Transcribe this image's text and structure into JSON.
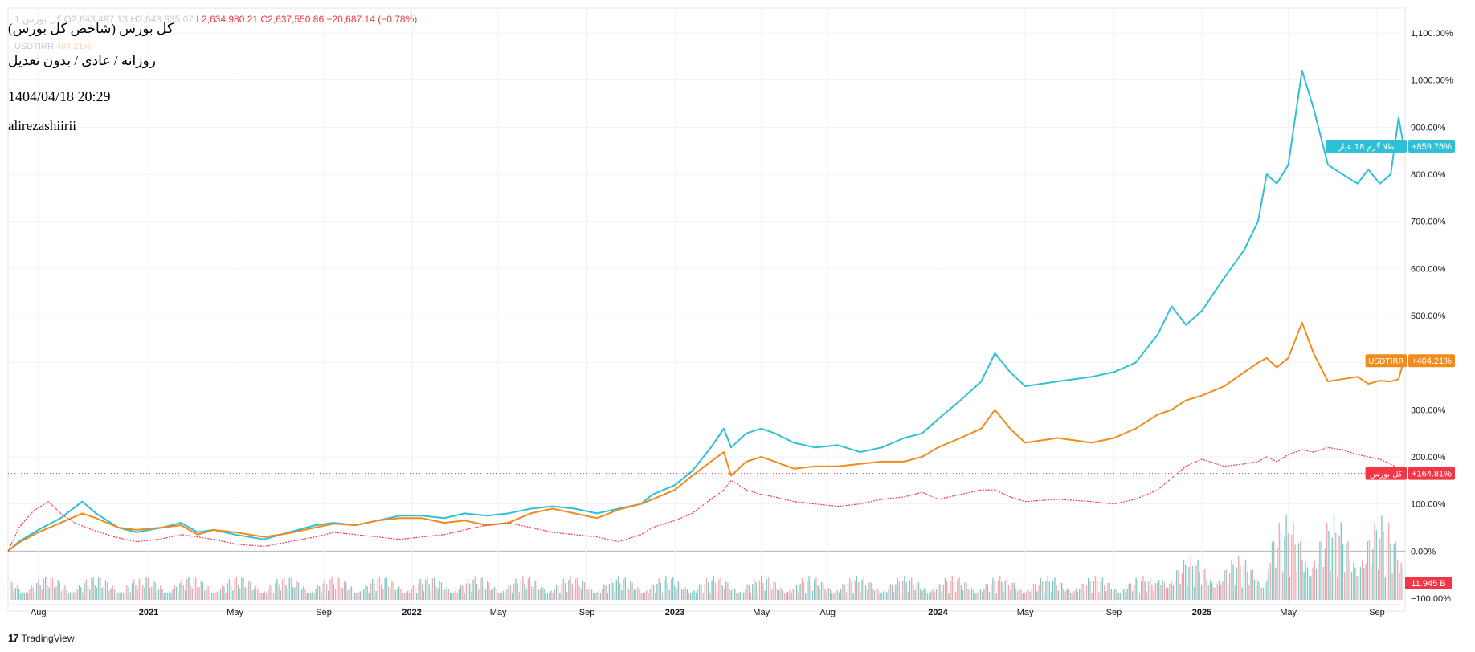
{
  "header": {
    "title": "کل بورس (شاخص کل بورس)",
    "interval": "روزانه / عادی / بدون تعدیل",
    "datetime": "1404/04/18 20:29",
    "author": "alirezashiirii"
  },
  "ohlc": {
    "symbol_hint": "کل بورس 1",
    "open": "O2,643,497.13",
    "high": "H2,643,635.07",
    "low": "L2,634,980.21",
    "close": "C2,637,550.86",
    "change": "−20,687.14 (−0.78%)"
  },
  "usdt_hint": {
    "symbol": "USDTIRR",
    "value": "404.21%"
  },
  "brand": {
    "logo": "17",
    "name": "TradingView"
  },
  "colors": {
    "gold": "#2ec0d4",
    "usdt": "#f08b1c",
    "index_up": "#089981",
    "index_down": "#f23645",
    "axis_text": "#131722",
    "grid": "#f0f3fa"
  },
  "chart_data": {
    "type": "line",
    "title": "کل بورس (شاخص کل بورس)",
    "xlabel": "",
    "ylabel": "",
    "y_unit": "%",
    "ylim": [
      -100,
      1100
    ],
    "x_range": [
      "2020-06-20",
      "2025-10-10"
    ],
    "x_ticks": [
      {
        "date": "2020-08-01",
        "label": "Aug"
      },
      {
        "date": "2021-01-01",
        "label": "2021"
      },
      {
        "date": "2021-05-01",
        "label": "May"
      },
      {
        "date": "2021-09-01",
        "label": "Sep"
      },
      {
        "date": "2022-01-01",
        "label": "2022"
      },
      {
        "date": "2022-05-01",
        "label": "May"
      },
      {
        "date": "2022-09-01",
        "label": "Sep"
      },
      {
        "date": "2023-01-01",
        "label": "2023"
      },
      {
        "date": "2023-05-01",
        "label": "May"
      },
      {
        "date": "2023-08-01",
        "label": "Aug"
      },
      {
        "date": "2024-01-01",
        "label": "2024"
      },
      {
        "date": "2024-05-01",
        "label": "May"
      },
      {
        "date": "2024-09-01",
        "label": "Sep"
      },
      {
        "date": "2025-01-01",
        "label": "2025"
      },
      {
        "date": "2025-05-01",
        "label": "May"
      },
      {
        "date": "2025-09-01",
        "label": "Sep"
      }
    ],
    "y_ticks": [
      {
        "value": 1100,
        "label": "1,100.00%"
      },
      {
        "value": 1000,
        "label": "1,000.00%"
      },
      {
        "value": 900,
        "label": "900.00%"
      },
      {
        "value": 800,
        "label": "800.00%"
      },
      {
        "value": 700,
        "label": "700.00%"
      },
      {
        "value": 600,
        "label": "600.00%"
      },
      {
        "value": 500,
        "label": "500.00%"
      },
      {
        "value": 400,
        "label": "400.00%"
      },
      {
        "value": 300,
        "label": "300.00%"
      },
      {
        "value": 200,
        "label": "200.00%"
      },
      {
        "value": 100,
        "label": "100.00%"
      },
      {
        "value": 0,
        "label": "0.00%"
      },
      {
        "value": -100,
        "label": "−100.00%"
      }
    ],
    "series": [
      {
        "name": "طلا گرم 18 عیار",
        "last_label": "+859.76%",
        "last_value": 859.76,
        "color": "#2ec0d4",
        "points": [
          [
            "2020-06-20",
            0
          ],
          [
            "2020-07-05",
            20
          ],
          [
            "2020-08-01",
            45
          ],
          [
            "2020-09-01",
            70
          ],
          [
            "2020-10-01",
            105
          ],
          [
            "2020-10-20",
            80
          ],
          [
            "2020-11-20",
            50
          ],
          [
            "2020-12-15",
            40
          ],
          [
            "2021-01-20",
            50
          ],
          [
            "2021-02-15",
            60
          ],
          [
            "2021-03-10",
            40
          ],
          [
            "2021-04-01",
            45
          ],
          [
            "2021-05-01",
            35
          ],
          [
            "2021-06-10",
            25
          ],
          [
            "2021-07-15",
            40
          ],
          [
            "2021-08-20",
            55
          ],
          [
            "2021-09-15",
            60
          ],
          [
            "2021-10-15",
            55
          ],
          [
            "2021-11-15",
            65
          ],
          [
            "2021-12-15",
            75
          ],
          [
            "2022-01-15",
            75
          ],
          [
            "2022-02-15",
            70
          ],
          [
            "2022-03-15",
            80
          ],
          [
            "2022-04-15",
            75
          ],
          [
            "2022-05-15",
            80
          ],
          [
            "2022-06-15",
            90
          ],
          [
            "2022-07-15",
            95
          ],
          [
            "2022-08-15",
            90
          ],
          [
            "2022-09-15",
            80
          ],
          [
            "2022-10-15",
            90
          ],
          [
            "2022-11-15",
            100
          ],
          [
            "2022-12-01",
            120
          ],
          [
            "2023-01-01",
            140
          ],
          [
            "2023-01-25",
            170
          ],
          [
            "2023-02-20",
            220
          ],
          [
            "2023-03-10",
            260
          ],
          [
            "2023-03-20",
            220
          ],
          [
            "2023-04-10",
            250
          ],
          [
            "2023-05-01",
            260
          ],
          [
            "2023-05-20",
            250
          ],
          [
            "2023-06-15",
            230
          ],
          [
            "2023-07-15",
            220
          ],
          [
            "2023-08-15",
            225
          ],
          [
            "2023-09-15",
            210
          ],
          [
            "2023-10-15",
            220
          ],
          [
            "2023-11-15",
            240
          ],
          [
            "2023-12-10",
            250
          ],
          [
            "2024-01-01",
            280
          ],
          [
            "2024-02-01",
            320
          ],
          [
            "2024-03-01",
            360
          ],
          [
            "2024-03-20",
            420
          ],
          [
            "2024-04-10",
            380
          ],
          [
            "2024-05-01",
            350
          ],
          [
            "2024-06-15",
            360
          ],
          [
            "2024-08-01",
            370
          ],
          [
            "2024-09-01",
            380
          ],
          [
            "2024-10-01",
            400
          ],
          [
            "2024-11-01",
            460
          ],
          [
            "2024-11-20",
            520
          ],
          [
            "2024-12-10",
            480
          ],
          [
            "2025-01-01",
            510
          ],
          [
            "2025-02-01",
            580
          ],
          [
            "2025-03-01",
            640
          ],
          [
            "2025-03-20",
            700
          ],
          [
            "2025-04-01",
            800
          ],
          [
            "2025-04-15",
            780
          ],
          [
            "2025-05-01",
            820
          ],
          [
            "2025-05-20",
            1020
          ],
          [
            "2025-06-05",
            940
          ],
          [
            "2025-06-25",
            820
          ],
          [
            "2025-07-15",
            800
          ],
          [
            "2025-08-05",
            780
          ],
          [
            "2025-08-20",
            810
          ],
          [
            "2025-09-05",
            780
          ],
          [
            "2025-09-20",
            800
          ],
          [
            "2025-10-01",
            920
          ],
          [
            "2025-10-08",
            859.76
          ]
        ]
      },
      {
        "name": "USDTIRR",
        "last_label": "+404.21%",
        "last_value": 404.21,
        "color": "#f08b1c",
        "points": [
          [
            "2020-06-20",
            0
          ],
          [
            "2020-07-05",
            18
          ],
          [
            "2020-08-01",
            40
          ],
          [
            "2020-09-01",
            60
          ],
          [
            "2020-10-01",
            80
          ],
          [
            "2020-10-20",
            70
          ],
          [
            "2020-11-20",
            50
          ],
          [
            "2020-12-15",
            45
          ],
          [
            "2021-01-20",
            50
          ],
          [
            "2021-02-15",
            55
          ],
          [
            "2021-03-10",
            35
          ],
          [
            "2021-04-01",
            45
          ],
          [
            "2021-05-01",
            40
          ],
          [
            "2021-06-10",
            30
          ],
          [
            "2021-07-15",
            38
          ],
          [
            "2021-08-20",
            50
          ],
          [
            "2021-09-15",
            58
          ],
          [
            "2021-10-15",
            55
          ],
          [
            "2021-11-15",
            65
          ],
          [
            "2021-12-15",
            70
          ],
          [
            "2022-01-15",
            70
          ],
          [
            "2022-02-15",
            60
          ],
          [
            "2022-03-15",
            65
          ],
          [
            "2022-04-15",
            55
          ],
          [
            "2022-05-15",
            60
          ],
          [
            "2022-06-15",
            80
          ],
          [
            "2022-07-15",
            90
          ],
          [
            "2022-08-15",
            80
          ],
          [
            "2022-09-15",
            70
          ],
          [
            "2022-10-15",
            88
          ],
          [
            "2022-11-15",
            100
          ],
          [
            "2022-12-01",
            110
          ],
          [
            "2023-01-01",
            130
          ],
          [
            "2023-01-25",
            160
          ],
          [
            "2023-02-20",
            190
          ],
          [
            "2023-03-10",
            210
          ],
          [
            "2023-03-20",
            160
          ],
          [
            "2023-04-10",
            190
          ],
          [
            "2023-05-01",
            200
          ],
          [
            "2023-05-20",
            190
          ],
          [
            "2023-06-15",
            175
          ],
          [
            "2023-07-15",
            180
          ],
          [
            "2023-08-15",
            180
          ],
          [
            "2023-09-15",
            185
          ],
          [
            "2023-10-15",
            190
          ],
          [
            "2023-11-15",
            190
          ],
          [
            "2023-12-10",
            200
          ],
          [
            "2024-01-01",
            220
          ],
          [
            "2024-02-01",
            240
          ],
          [
            "2024-03-01",
            260
          ],
          [
            "2024-03-20",
            300
          ],
          [
            "2024-04-10",
            260
          ],
          [
            "2024-05-01",
            230
          ],
          [
            "2024-06-15",
            240
          ],
          [
            "2024-08-01",
            230
          ],
          [
            "2024-09-01",
            240
          ],
          [
            "2024-10-01",
            260
          ],
          [
            "2024-11-01",
            290
          ],
          [
            "2024-11-20",
            300
          ],
          [
            "2024-12-10",
            320
          ],
          [
            "2025-01-01",
            330
          ],
          [
            "2025-02-01",
            350
          ],
          [
            "2025-03-01",
            380
          ],
          [
            "2025-03-20",
            400
          ],
          [
            "2025-04-01",
            410
          ],
          [
            "2025-04-15",
            390
          ],
          [
            "2025-05-01",
            410
          ],
          [
            "2025-05-20",
            485
          ],
          [
            "2025-06-05",
            420
          ],
          [
            "2025-06-25",
            360
          ],
          [
            "2025-07-15",
            365
          ],
          [
            "2025-08-05",
            370
          ],
          [
            "2025-08-20",
            355
          ],
          [
            "2025-09-05",
            362
          ],
          [
            "2025-09-20",
            360
          ],
          [
            "2025-10-01",
            365
          ],
          [
            "2025-10-08",
            404.21
          ]
        ]
      },
      {
        "name": "کل بورس",
        "last_label": "+164.81%",
        "last_value": 164.81,
        "color": "#f23645",
        "style": "candles",
        "points": [
          [
            "2020-06-20",
            0
          ],
          [
            "2020-07-05",
            50
          ],
          [
            "2020-07-25",
            85
          ],
          [
            "2020-08-15",
            105
          ],
          [
            "2020-09-01",
            80
          ],
          [
            "2020-09-20",
            60
          ],
          [
            "2020-10-15",
            45
          ],
          [
            "2020-11-15",
            30
          ],
          [
            "2020-12-15",
            20
          ],
          [
            "2021-01-15",
            25
          ],
          [
            "2021-02-15",
            35
          ],
          [
            "2021-03-10",
            30
          ],
          [
            "2021-04-01",
            25
          ],
          [
            "2021-05-01",
            15
          ],
          [
            "2021-06-10",
            10
          ],
          [
            "2021-07-15",
            20
          ],
          [
            "2021-08-20",
            30
          ],
          [
            "2021-09-15",
            40
          ],
          [
            "2021-10-15",
            35
          ],
          [
            "2021-11-15",
            30
          ],
          [
            "2021-12-15",
            25
          ],
          [
            "2022-01-15",
            30
          ],
          [
            "2022-02-15",
            35
          ],
          [
            "2022-03-15",
            45
          ],
          [
            "2022-04-15",
            55
          ],
          [
            "2022-05-15",
            60
          ],
          [
            "2022-06-15",
            50
          ],
          [
            "2022-07-15",
            40
          ],
          [
            "2022-08-15",
            35
          ],
          [
            "2022-09-15",
            30
          ],
          [
            "2022-10-15",
            20
          ],
          [
            "2022-11-15",
            35
          ],
          [
            "2022-12-01",
            50
          ],
          [
            "2023-01-01",
            65
          ],
          [
            "2023-01-25",
            80
          ],
          [
            "2023-02-20",
            110
          ],
          [
            "2023-03-10",
            130
          ],
          [
            "2023-03-20",
            150
          ],
          [
            "2023-04-10",
            130
          ],
          [
            "2023-05-01",
            120
          ],
          [
            "2023-05-20",
            115
          ],
          [
            "2023-06-15",
            105
          ],
          [
            "2023-07-15",
            100
          ],
          [
            "2023-08-15",
            95
          ],
          [
            "2023-09-15",
            100
          ],
          [
            "2023-10-15",
            110
          ],
          [
            "2023-11-15",
            115
          ],
          [
            "2023-12-10",
            125
          ],
          [
            "2024-01-01",
            110
          ],
          [
            "2024-02-01",
            120
          ],
          [
            "2024-03-01",
            130
          ],
          [
            "2024-03-20",
            130
          ],
          [
            "2024-04-10",
            115
          ],
          [
            "2024-05-01",
            105
          ],
          [
            "2024-06-15",
            110
          ],
          [
            "2024-08-01",
            105
          ],
          [
            "2024-09-01",
            100
          ],
          [
            "2024-10-01",
            110
          ],
          [
            "2024-11-01",
            130
          ],
          [
            "2024-11-20",
            155
          ],
          [
            "2024-12-10",
            180
          ],
          [
            "2025-01-01",
            195
          ],
          [
            "2025-02-01",
            180
          ],
          [
            "2025-03-01",
            185
          ],
          [
            "2025-03-20",
            190
          ],
          [
            "2025-04-01",
            200
          ],
          [
            "2025-04-15",
            190
          ],
          [
            "2025-05-01",
            205
          ],
          [
            "2025-05-20",
            215
          ],
          [
            "2025-06-05",
            210
          ],
          [
            "2025-06-25",
            220
          ],
          [
            "2025-07-15",
            215
          ],
          [
            "2025-08-05",
            205
          ],
          [
            "2025-08-20",
            200
          ],
          [
            "2025-09-05",
            195
          ],
          [
            "2025-09-20",
            185
          ],
          [
            "2025-10-01",
            175
          ],
          [
            "2025-10-08",
            164.81
          ]
        ]
      }
    ],
    "volume": {
      "label": "11.945 B",
      "up_color": "#80cbc4",
      "down_color": "#f7a9b1",
      "baseline_pct": -100
    },
    "grid": true
  }
}
